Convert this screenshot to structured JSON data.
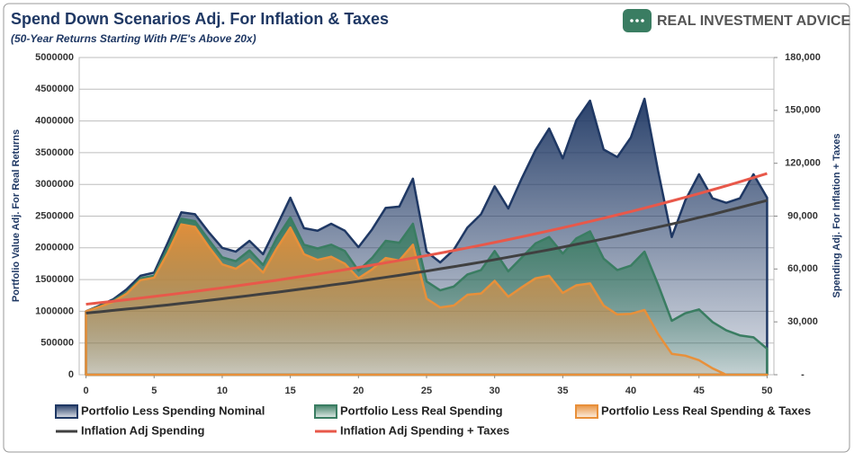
{
  "header": {
    "title": "Spend Down Scenarios Adj. For Inflation & Taxes",
    "subtitle": "(50-Year Returns Starting With P/E's Above 20x)",
    "logo": "REAL INVESTMENT ADVICE"
  },
  "chart_data": {
    "type": "area",
    "ylabel": "Portfolio Value Adj. For Real Returns",
    "y2label": "Spending Adj. For Inflation + Taxes",
    "x": [
      0,
      1,
      2,
      3,
      4,
      5,
      6,
      7,
      8,
      9,
      10,
      11,
      12,
      13,
      14,
      15,
      16,
      17,
      18,
      19,
      20,
      21,
      22,
      23,
      24,
      25,
      26,
      27,
      28,
      29,
      30,
      31,
      32,
      33,
      34,
      35,
      36,
      37,
      38,
      39,
      40,
      41,
      42,
      43,
      44,
      45,
      46,
      47,
      48,
      49,
      50
    ],
    "xlim": [
      -0.5,
      50.5
    ],
    "xticks": [
      0,
      5,
      10,
      15,
      20,
      25,
      30,
      35,
      40,
      45,
      50
    ],
    "ylim": [
      0,
      5000000
    ],
    "yticks": [
      0,
      500000,
      1000000,
      1500000,
      2000000,
      2500000,
      3000000,
      3500000,
      4000000,
      4500000,
      5000000
    ],
    "y2lim": [
      0,
      180000
    ],
    "y2ticks": [
      {
        "value": 0,
        "label": "-"
      },
      {
        "value": 30000,
        "label": "30,000"
      },
      {
        "value": 60000,
        "label": "60,000"
      },
      {
        "value": 90000,
        "label": "90,000"
      },
      {
        "value": 120000,
        "label": "120,000"
      },
      {
        "value": 150000,
        "label": "150,000"
      },
      {
        "value": 180000,
        "label": "180,000"
      }
    ],
    "grid": true,
    "series": [
      {
        "name": "Portfolio Less Spending Nominal",
        "type": "area",
        "color": "#1f3864",
        "values": [
          1000000,
          1090000,
          1190000,
          1350000,
          1560000,
          1610000,
          2080000,
          2560000,
          2530000,
          2250000,
          2000000,
          1940000,
          2110000,
          1900000,
          2340000,
          2790000,
          2310000,
          2270000,
          2380000,
          2270000,
          2010000,
          2290000,
          2630000,
          2650000,
          3090000,
          1940000,
          1770000,
          1970000,
          2320000,
          2530000,
          2970000,
          2620000,
          3100000,
          3540000,
          3880000,
          3410000,
          4010000,
          4320000,
          3550000,
          3430000,
          3740000,
          4350000,
          3210000,
          2170000,
          2750000,
          3160000,
          2780000,
          2710000,
          2780000,
          3160000,
          2790000
        ]
      },
      {
        "name": "Portfolio Less Real Spending",
        "type": "area",
        "color": "#3a7d62",
        "values": [
          1000000,
          1080000,
          1170000,
          1300000,
          1520000,
          1560000,
          2000000,
          2460000,
          2420000,
          2130000,
          1850000,
          1790000,
          1960000,
          1730000,
          2150000,
          2480000,
          2050000,
          1990000,
          2050000,
          1950000,
          1640000,
          1840000,
          2110000,
          2080000,
          2380000,
          1470000,
          1330000,
          1390000,
          1580000,
          1650000,
          1950000,
          1630000,
          1850000,
          2070000,
          2170000,
          1910000,
          2150000,
          2260000,
          1830000,
          1650000,
          1720000,
          1940000,
          1420000,
          850000,
          970000,
          1030000,
          830000,
          700000,
          620000,
          590000,
          410000
        ]
      },
      {
        "name": "Portfolio Less Real Spending & Taxes",
        "type": "area",
        "color": "#e8903a",
        "values": [
          1000000,
          1070000,
          1150000,
          1280000,
          1490000,
          1530000,
          1920000,
          2370000,
          2330000,
          2020000,
          1740000,
          1670000,
          1820000,
          1610000,
          1990000,
          2320000,
          1900000,
          1810000,
          1860000,
          1750000,
          1520000,
          1660000,
          1840000,
          1800000,
          2050000,
          1200000,
          1060000,
          1090000,
          1260000,
          1280000,
          1480000,
          1230000,
          1380000,
          1520000,
          1560000,
          1290000,
          1410000,
          1440000,
          1090000,
          950000,
          960000,
          1020000,
          640000,
          330000,
          300000,
          230000,
          100000,
          0,
          0,
          0,
          0
        ]
      },
      {
        "name": "Inflation Adj Spending",
        "type": "line",
        "axis": "y2",
        "color": "#404040",
        "values": [
          35000,
          35700,
          36500,
          37300,
          38000,
          38800,
          39600,
          40500,
          41300,
          42200,
          43100,
          44000,
          44900,
          45900,
          46800,
          47800,
          48800,
          49800,
          50900,
          51900,
          53000,
          54200,
          55300,
          56400,
          57600,
          58800,
          60100,
          61300,
          62600,
          63900,
          65300,
          66700,
          68100,
          69500,
          70900,
          72400,
          74000,
          75500,
          77100,
          78700,
          80400,
          82100,
          83800,
          85500,
          87300,
          89200,
          91000,
          93000,
          94900,
          96900,
          98900
        ]
      },
      {
        "name": "Inflation Adj Spending + Taxes",
        "type": "line",
        "axis": "y2",
        "color": "#e8584a",
        "values": [
          40000,
          40850,
          41710,
          42600,
          43500,
          44400,
          45350,
          46310,
          47290,
          48290,
          49300,
          50350,
          51420,
          52510,
          53620,
          54800,
          55960,
          57150,
          58360,
          59600,
          60900,
          62190,
          63510,
          64860,
          66230,
          67600,
          69030,
          70500,
          72000,
          73520,
          75100,
          76690,
          78320,
          79980,
          81680,
          83400,
          85170,
          86980,
          88820,
          90710,
          92600,
          94560,
          96570,
          98610,
          100700,
          102800,
          104980,
          107200,
          109480,
          111800,
          114200
        ]
      }
    ]
  }
}
